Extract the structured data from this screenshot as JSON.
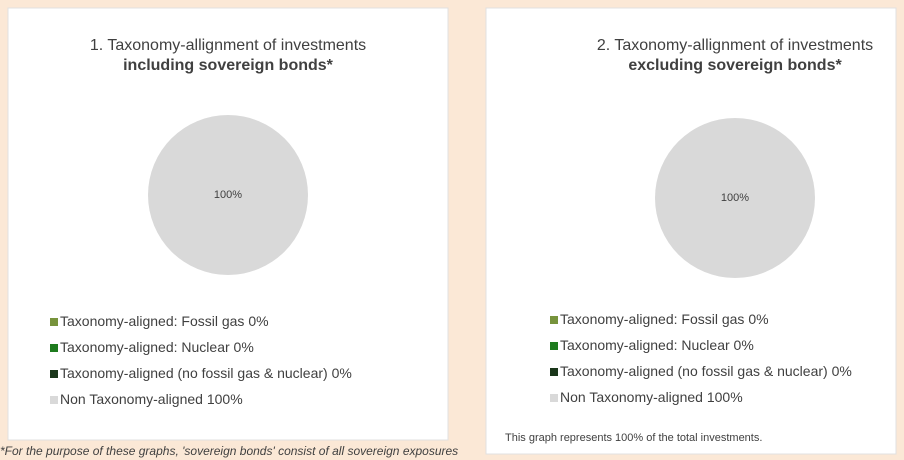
{
  "chart_data": [
    {
      "type": "pie",
      "title": "1. Taxonomy-allignment of investments",
      "subtitle": "including sovereign bonds*",
      "categories": [
        "Taxonomy-aligned: Fossil gas",
        "Taxonomy-aligned: Nuclear",
        "Taxonomy-aligned (no fossil gas & nuclear)",
        "Non Taxonomy-aligned"
      ],
      "values": [
        0,
        0,
        0,
        100
      ],
      "value_labels": [
        "0%",
        "0%",
        "0%",
        "100%"
      ],
      "colors": [
        "#77933c",
        "#1e7b1e",
        "#1a361a",
        "#d9d9d9"
      ]
    },
    {
      "type": "pie",
      "title": "2. Taxonomy-allignment of investments",
      "subtitle": "excluding sovereign bonds*",
      "categories": [
        "Taxonomy-aligned: Fossil gas",
        "Taxonomy-aligned: Nuclear",
        "Taxonomy-aligned (no fossil gas & nuclear)",
        "Non Taxonomy-aligned"
      ],
      "values": [
        0,
        0,
        0,
        100
      ],
      "value_labels": [
        "0%",
        "0%",
        "0%",
        "100%"
      ],
      "colors": [
        "#77933c",
        "#1e7b1e",
        "#1a361a",
        "#d9d9d9"
      ],
      "annotation": "This graph represents 100% of the total investments."
    }
  ],
  "footnote": "*For the purpose of these graphs, 'sovereign bonds' consist of all sovereign exposures"
}
